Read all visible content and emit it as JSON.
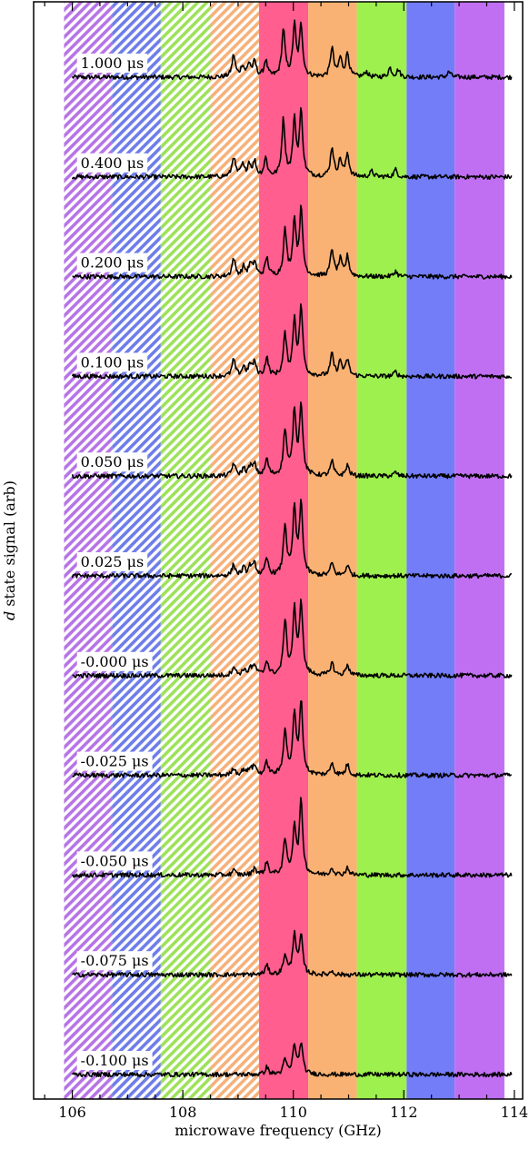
{
  "chart_data": {
    "type": "line",
    "title": "",
    "xlabel": "microwave frequency (GHz)",
    "ylabel_italic": "d",
    "ylabel": " state signal (arb)",
    "xlim": [
      105.3,
      114.15
    ],
    "x_ticks": [
      106,
      108,
      110,
      112,
      114
    ],
    "x_tick_labels": [
      "106",
      "108",
      "110",
      "112",
      "114"
    ],
    "grid": false,
    "legend": "none",
    "band_edges": [
      105.85,
      106.72,
      107.6,
      108.5,
      109.38,
      110.27,
      111.15,
      112.05,
      112.92,
      113.82
    ],
    "bands": [
      {
        "color": "#b774e6",
        "hatched": true
      },
      {
        "color": "#6e7de8",
        "hatched": true
      },
      {
        "color": "#9de25a",
        "hatched": true
      },
      {
        "color": "#f6b17b",
        "hatched": true
      },
      {
        "color": "#ff5e8f",
        "hatched": false
      },
      {
        "color": "#f9b273",
        "hatched": false
      },
      {
        "color": "#9ef04e",
        "hatched": false
      },
      {
        "color": "#737df8",
        "hatched": false
      },
      {
        "color": "#c16ff2",
        "hatched": false
      }
    ],
    "series": [
      {
        "label": "1.000 μs",
        "peaks": [
          [
            108.92,
            0.24
          ],
          [
            109.08,
            0.12
          ],
          [
            109.2,
            0.14
          ],
          [
            109.3,
            0.16
          ],
          [
            109.5,
            0.18
          ],
          [
            109.82,
            0.52
          ],
          [
            110.02,
            0.55
          ],
          [
            110.14,
            0.55
          ],
          [
            110.7,
            0.32
          ],
          [
            110.85,
            0.2
          ],
          [
            110.98,
            0.26
          ],
          [
            111.32,
            0.06
          ],
          [
            111.75,
            0.1
          ],
          [
            111.9,
            0.08
          ],
          [
            112.82,
            0.06
          ]
        ]
      },
      {
        "label": "0.400 μs",
        "peaks": [
          [
            108.92,
            0.22
          ],
          [
            109.08,
            0.12
          ],
          [
            109.2,
            0.14
          ],
          [
            109.3,
            0.16
          ],
          [
            109.5,
            0.2
          ],
          [
            109.82,
            0.62
          ],
          [
            110.02,
            0.6
          ],
          [
            110.14,
            0.7
          ],
          [
            110.7,
            0.32
          ],
          [
            110.85,
            0.18
          ],
          [
            110.98,
            0.25
          ],
          [
            111.42,
            0.06
          ],
          [
            111.85,
            0.08
          ]
        ]
      },
      {
        "label": "0.200 μs",
        "peaks": [
          [
            108.92,
            0.2
          ],
          [
            109.1,
            0.1
          ],
          [
            109.22,
            0.12
          ],
          [
            109.3,
            0.15
          ],
          [
            109.52,
            0.2
          ],
          [
            109.85,
            0.5
          ],
          [
            110.02,
            0.6
          ],
          [
            110.14,
            0.72
          ],
          [
            110.7,
            0.3
          ],
          [
            110.85,
            0.18
          ],
          [
            110.98,
            0.22
          ],
          [
            111.85,
            0.06
          ]
        ]
      },
      {
        "label": "0.100 μs",
        "peaks": [
          [
            108.92,
            0.18
          ],
          [
            109.1,
            0.1
          ],
          [
            109.22,
            0.12
          ],
          [
            109.3,
            0.14
          ],
          [
            109.52,
            0.2
          ],
          [
            109.85,
            0.45
          ],
          [
            110.02,
            0.6
          ],
          [
            110.14,
            0.75
          ],
          [
            110.7,
            0.24
          ],
          [
            110.85,
            0.16
          ],
          [
            110.98,
            0.18
          ],
          [
            111.85,
            0.05
          ]
        ]
      },
      {
        "label": "0.050 μs",
        "peaks": [
          [
            108.92,
            0.14
          ],
          [
            109.1,
            0.08
          ],
          [
            109.22,
            0.1
          ],
          [
            109.3,
            0.12
          ],
          [
            109.52,
            0.18
          ],
          [
            109.85,
            0.5
          ],
          [
            110.02,
            0.7
          ],
          [
            110.14,
            0.78
          ],
          [
            110.7,
            0.16
          ],
          [
            110.98,
            0.12
          ],
          [
            111.85,
            0.04
          ]
        ]
      },
      {
        "label": "0.025 μs",
        "peaks": [
          [
            108.92,
            0.12
          ],
          [
            109.1,
            0.08
          ],
          [
            109.22,
            0.1
          ],
          [
            109.3,
            0.12
          ],
          [
            109.52,
            0.18
          ],
          [
            109.85,
            0.55
          ],
          [
            110.02,
            0.72
          ],
          [
            110.14,
            0.78
          ],
          [
            110.7,
            0.14
          ],
          [
            110.98,
            0.12
          ]
        ]
      },
      {
        "label": "-0.000 μs",
        "peaks": [
          [
            108.92,
            0.1
          ],
          [
            109.1,
            0.06
          ],
          [
            109.22,
            0.08
          ],
          [
            109.3,
            0.1
          ],
          [
            109.52,
            0.16
          ],
          [
            109.85,
            0.6
          ],
          [
            110.02,
            0.7
          ],
          [
            110.14,
            0.8
          ],
          [
            110.7,
            0.14
          ],
          [
            110.98,
            0.12
          ]
        ]
      },
      {
        "label": "-0.025 μs",
        "peaks": [
          [
            108.92,
            0.08
          ],
          [
            109.1,
            0.06
          ],
          [
            109.22,
            0.08
          ],
          [
            109.3,
            0.1
          ],
          [
            109.52,
            0.14
          ],
          [
            109.85,
            0.5
          ],
          [
            110.02,
            0.65
          ],
          [
            110.14,
            0.8
          ],
          [
            110.7,
            0.14
          ],
          [
            110.98,
            0.12
          ]
        ]
      },
      {
        "label": "-0.050 μs",
        "peaks": [
          [
            108.92,
            0.05
          ],
          [
            109.3,
            0.08
          ],
          [
            109.52,
            0.14
          ],
          [
            109.85,
            0.38
          ],
          [
            110.02,
            0.52
          ],
          [
            110.14,
            0.8
          ],
          [
            110.7,
            0.08
          ],
          [
            110.98,
            0.08
          ]
        ]
      },
      {
        "label": "-0.075 μs",
        "peaks": [
          [
            109.52,
            0.1
          ],
          [
            109.85,
            0.22
          ],
          [
            110.02,
            0.45
          ],
          [
            110.14,
            0.42
          ],
          [
            110.7,
            0.04
          ]
        ]
      },
      {
        "label": "-0.100 μs",
        "peaks": [
          [
            109.52,
            0.08
          ],
          [
            109.85,
            0.16
          ],
          [
            110.02,
            0.32
          ],
          [
            110.14,
            0.34
          ]
        ]
      }
    ]
  }
}
